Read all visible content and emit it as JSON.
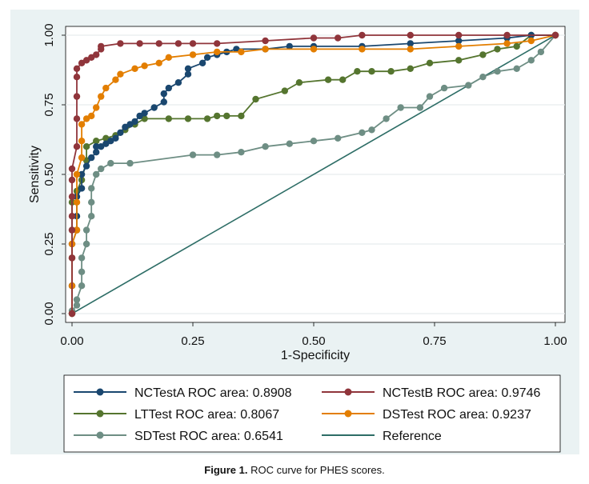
{
  "caption": {
    "label": "Figure 1.",
    "text": "ROC curve for PHES scores."
  },
  "chart_data": {
    "type": "line",
    "xlabel": "1-Specificity",
    "ylabel": "Sensitivity",
    "xlim": [
      0,
      1
    ],
    "ylim": [
      0,
      1
    ],
    "xticks": [
      "0.00",
      "0.25",
      "0.50",
      "0.75",
      "1.00"
    ],
    "yticks": [
      "0.00",
      "0.25",
      "0.50",
      "0.75",
      "1.00"
    ],
    "grid": true,
    "legend_position": "bottom",
    "series": [
      {
        "name": "NCTestA ROC area: 0.8908",
        "color": "#1a476f",
        "points": [
          [
            0,
            0
          ],
          [
            0,
            0.1
          ],
          [
            0,
            0.2
          ],
          [
            0,
            0.25
          ],
          [
            0.01,
            0.3
          ],
          [
            0.01,
            0.35
          ],
          [
            0.01,
            0.42
          ],
          [
            0.02,
            0.45
          ],
          [
            0.02,
            0.5
          ],
          [
            0.03,
            0.53
          ],
          [
            0.04,
            0.56
          ],
          [
            0.05,
            0.58
          ],
          [
            0.05,
            0.6
          ],
          [
            0.06,
            0.6
          ],
          [
            0.07,
            0.61
          ],
          [
            0.08,
            0.62
          ],
          [
            0.09,
            0.63
          ],
          [
            0.1,
            0.65
          ],
          [
            0.11,
            0.67
          ],
          [
            0.12,
            0.68
          ],
          [
            0.13,
            0.69
          ],
          [
            0.14,
            0.71
          ],
          [
            0.15,
            0.72
          ],
          [
            0.17,
            0.74
          ],
          [
            0.19,
            0.76
          ],
          [
            0.19,
            0.79
          ],
          [
            0.2,
            0.81
          ],
          [
            0.22,
            0.83
          ],
          [
            0.24,
            0.86
          ],
          [
            0.24,
            0.88
          ],
          [
            0.27,
            0.9
          ],
          [
            0.28,
            0.92
          ],
          [
            0.3,
            0.93
          ],
          [
            0.32,
            0.94
          ],
          [
            0.34,
            0.95
          ],
          [
            0.4,
            0.95
          ],
          [
            0.45,
            0.96
          ],
          [
            0.5,
            0.96
          ],
          [
            0.6,
            0.96
          ],
          [
            0.7,
            0.97
          ],
          [
            0.8,
            0.98
          ],
          [
            0.9,
            0.99
          ],
          [
            0.95,
            1
          ],
          [
            1,
            1
          ]
        ]
      },
      {
        "name": "NCTestB ROC area: 0.9746",
        "color": "#90353b",
        "points": [
          [
            0,
            0
          ],
          [
            0,
            0.2
          ],
          [
            0,
            0.3
          ],
          [
            0,
            0.35
          ],
          [
            0,
            0.42
          ],
          [
            0,
            0.48
          ],
          [
            0,
            0.52
          ],
          [
            0.01,
            0.6
          ],
          [
            0.01,
            0.7
          ],
          [
            0.01,
            0.78
          ],
          [
            0.01,
            0.85
          ],
          [
            0.01,
            0.88
          ],
          [
            0.02,
            0.9
          ],
          [
            0.03,
            0.91
          ],
          [
            0.04,
            0.92
          ],
          [
            0.05,
            0.93
          ],
          [
            0.06,
            0.95
          ],
          [
            0.06,
            0.96
          ],
          [
            0.1,
            0.97
          ],
          [
            0.14,
            0.97
          ],
          [
            0.18,
            0.97
          ],
          [
            0.22,
            0.97
          ],
          [
            0.25,
            0.97
          ],
          [
            0.3,
            0.97
          ],
          [
            0.4,
            0.98
          ],
          [
            0.5,
            0.99
          ],
          [
            0.55,
            0.99
          ],
          [
            0.6,
            1
          ],
          [
            0.7,
            1
          ],
          [
            0.8,
            1
          ],
          [
            0.9,
            1
          ],
          [
            1,
            1
          ]
        ]
      },
      {
        "name": "LTTest ROC area: 0.8067",
        "color": "#55752f",
        "points": [
          [
            0,
            0
          ],
          [
            0,
            0.1
          ],
          [
            0,
            0.2
          ],
          [
            0,
            0.3
          ],
          [
            0,
            0.4
          ],
          [
            0.01,
            0.44
          ],
          [
            0.02,
            0.48
          ],
          [
            0.03,
            0.55
          ],
          [
            0.03,
            0.6
          ],
          [
            0.05,
            0.62
          ],
          [
            0.07,
            0.63
          ],
          [
            0.09,
            0.64
          ],
          [
            0.11,
            0.66
          ],
          [
            0.13,
            0.68
          ],
          [
            0.15,
            0.7
          ],
          [
            0.2,
            0.7
          ],
          [
            0.24,
            0.7
          ],
          [
            0.28,
            0.7
          ],
          [
            0.3,
            0.71
          ],
          [
            0.32,
            0.71
          ],
          [
            0.35,
            0.71
          ],
          [
            0.38,
            0.77
          ],
          [
            0.44,
            0.8
          ],
          [
            0.47,
            0.83
          ],
          [
            0.53,
            0.84
          ],
          [
            0.56,
            0.84
          ],
          [
            0.59,
            0.87
          ],
          [
            0.62,
            0.87
          ],
          [
            0.66,
            0.87
          ],
          [
            0.7,
            0.88
          ],
          [
            0.74,
            0.9
          ],
          [
            0.8,
            0.91
          ],
          [
            0.85,
            0.93
          ],
          [
            0.88,
            0.95
          ],
          [
            0.92,
            0.96
          ],
          [
            0.95,
            1
          ],
          [
            1,
            1
          ]
        ]
      },
      {
        "name": "DSTest ROC area: 0.9237",
        "color": "#e37e00",
        "points": [
          [
            0,
            0
          ],
          [
            0,
            0.1
          ],
          [
            0,
            0.2
          ],
          [
            0,
            0.25
          ],
          [
            0.01,
            0.3
          ],
          [
            0.01,
            0.4
          ],
          [
            0.01,
            0.5
          ],
          [
            0.02,
            0.56
          ],
          [
            0.02,
            0.62
          ],
          [
            0.02,
            0.68
          ],
          [
            0.03,
            0.7
          ],
          [
            0.04,
            0.71
          ],
          [
            0.05,
            0.74
          ],
          [
            0.06,
            0.78
          ],
          [
            0.07,
            0.81
          ],
          [
            0.09,
            0.84
          ],
          [
            0.1,
            0.86
          ],
          [
            0.13,
            0.88
          ],
          [
            0.15,
            0.89
          ],
          [
            0.18,
            0.9
          ],
          [
            0.2,
            0.92
          ],
          [
            0.25,
            0.93
          ],
          [
            0.3,
            0.94
          ],
          [
            0.35,
            0.94
          ],
          [
            0.4,
            0.95
          ],
          [
            0.5,
            0.95
          ],
          [
            0.6,
            0.95
          ],
          [
            0.7,
            0.95
          ],
          [
            0.8,
            0.96
          ],
          [
            0.9,
            0.97
          ],
          [
            0.95,
            0.98
          ],
          [
            1,
            1
          ]
        ]
      },
      {
        "name": "SDTest ROC area: 0.6541",
        "color": "#6e8e84",
        "points": [
          [
            0,
            0
          ],
          [
            0,
            0.01
          ],
          [
            0.01,
            0.03
          ],
          [
            0.01,
            0.05
          ],
          [
            0.02,
            0.1
          ],
          [
            0.02,
            0.15
          ],
          [
            0.02,
            0.2
          ],
          [
            0.03,
            0.25
          ],
          [
            0.03,
            0.3
          ],
          [
            0.04,
            0.35
          ],
          [
            0.04,
            0.4
          ],
          [
            0.04,
            0.45
          ],
          [
            0.05,
            0.5
          ],
          [
            0.06,
            0.52
          ],
          [
            0.08,
            0.54
          ],
          [
            0.12,
            0.54
          ],
          [
            0.25,
            0.57
          ],
          [
            0.3,
            0.57
          ],
          [
            0.35,
            0.58
          ],
          [
            0.4,
            0.6
          ],
          [
            0.45,
            0.61
          ],
          [
            0.5,
            0.62
          ],
          [
            0.55,
            0.63
          ],
          [
            0.6,
            0.65
          ],
          [
            0.62,
            0.66
          ],
          [
            0.65,
            0.7
          ],
          [
            0.68,
            0.74
          ],
          [
            0.72,
            0.74
          ],
          [
            0.74,
            0.78
          ],
          [
            0.77,
            0.81
          ],
          [
            0.82,
            0.82
          ],
          [
            0.85,
            0.85
          ],
          [
            0.88,
            0.87
          ],
          [
            0.92,
            0.88
          ],
          [
            0.95,
            0.91
          ],
          [
            0.97,
            0.94
          ],
          [
            1,
            1
          ]
        ]
      },
      {
        "name": "Reference",
        "color": "#2d6d66",
        "points": [
          [
            0,
            0
          ],
          [
            1,
            1
          ]
        ]
      }
    ]
  }
}
